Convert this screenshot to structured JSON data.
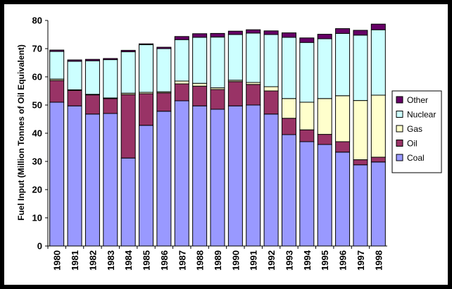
{
  "chart_data": {
    "type": "bar",
    "stacked": true,
    "categories": [
      "1980",
      "1981",
      "1982",
      "1983",
      "1984",
      "1985",
      "1986",
      "1987",
      "1988",
      "1989",
      "1990",
      "1991",
      "1992",
      "1993",
      "1994",
      "1995",
      "1996",
      "1997",
      "1998"
    ],
    "ylabel": "Fuel Input (Million Tonnes of Oil Equivalent)",
    "ylim": [
      0,
      80
    ],
    "yticks": [
      0,
      10,
      20,
      30,
      40,
      50,
      60,
      70,
      80
    ],
    "grid": false,
    "legend_position": "right",
    "series": [
      {
        "name": "Coal",
        "color": "#9999ff",
        "values": [
          51,
          49.7,
          46.8,
          47,
          31.2,
          42.8,
          47.8,
          51.5,
          49.7,
          48.5,
          49.7,
          50,
          46.8,
          39.5,
          37,
          36,
          33.3,
          28.8,
          29.8
        ]
      },
      {
        "name": "Oil",
        "color": "#993366",
        "values": [
          7.7,
          5.5,
          6.8,
          5.3,
          22.5,
          11.2,
          6.5,
          6,
          7,
          7,
          8.6,
          7.3,
          8.2,
          5.8,
          4.2,
          3.6,
          3.7,
          1.8,
          1.7
        ]
      },
      {
        "name": "Gas",
        "color": "#ffffcc",
        "values": [
          0.5,
          0.2,
          0.2,
          0.2,
          0.5,
          0.5,
          0.4,
          1,
          1,
          0.6,
          0.5,
          0.7,
          1.5,
          7,
          9.8,
          12.7,
          16.3,
          21,
          22
        ]
      },
      {
        "name": "Nuclear",
        "color": "#ccffff",
        "values": [
          9.8,
          10.1,
          11.9,
          13.6,
          14.7,
          16.9,
          15.3,
          14.7,
          16.3,
          18,
          16.2,
          17.5,
          18.5,
          21.7,
          21.2,
          21.2,
          22.1,
          23.2,
          23.2
        ]
      },
      {
        "name": "Other",
        "color": "#660066",
        "values": [
          0.5,
          0.5,
          0.5,
          0.4,
          0.5,
          0.3,
          0.5,
          1.1,
          1.3,
          1.3,
          1.2,
          1.2,
          1.3,
          1.6,
          1.6,
          1.6,
          1.7,
          1.7,
          2
        ]
      }
    ],
    "legend_order": [
      "Other",
      "Nuclear",
      "Gas",
      "Oil",
      "Coal"
    ]
  }
}
